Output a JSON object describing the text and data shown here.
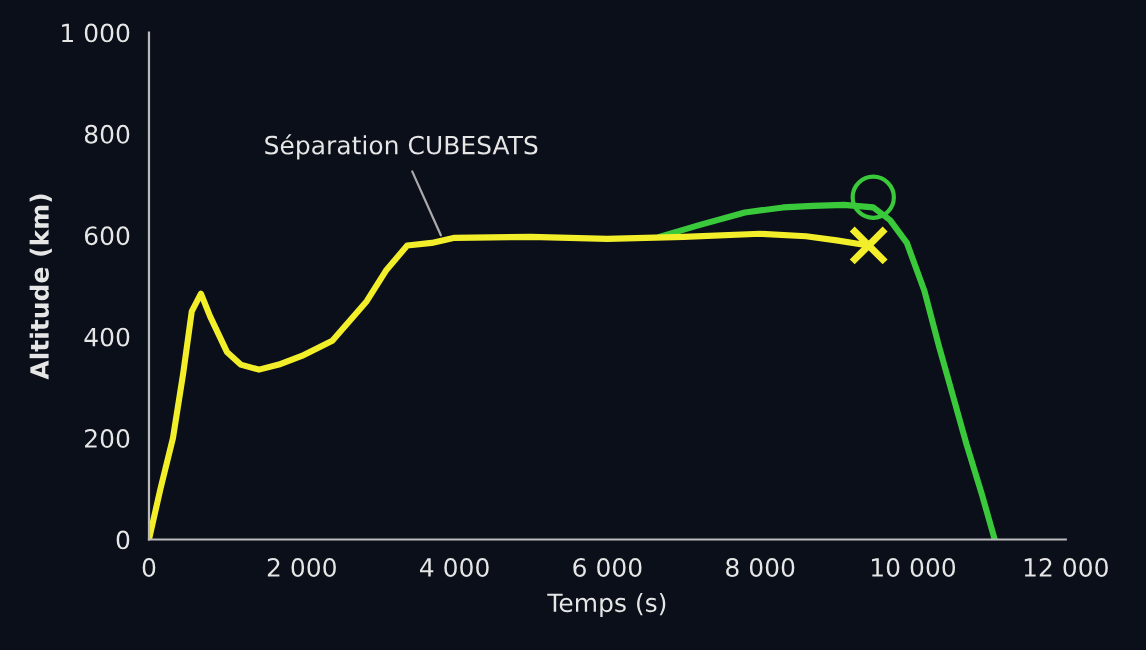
{
  "chart_data": {
    "type": "line",
    "xlabel": "Temps (s)",
    "ylabel": "Altitude (km)",
    "xlim": [
      0,
      12000
    ],
    "xticks": [
      {
        "value": 0,
        "label": "0"
      },
      {
        "value": 2000,
        "label": "2 000"
      },
      {
        "value": 4000,
        "label": "4 000"
      },
      {
        "value": 6000,
        "label": "6 000"
      },
      {
        "value": 8000,
        "label": "8 000"
      },
      {
        "value": 10000,
        "label": "10 000"
      },
      {
        "value": 12000,
        "label": "12 000"
      }
    ],
    "ylim": [
      0,
      1000
    ],
    "yticks": [
      0,
      200,
      400,
      600,
      800,
      {
        "value": 1000,
        "label": "1 000"
      }
    ],
    "grid": false,
    "legend": false,
    "line_style": "solid",
    "series": [
      {
        "color": "#39c93a",
        "x": [
          6680,
          7200,
          7800,
          8300,
          8690,
          9100,
          9480,
          9700,
          9920,
          10150,
          10340,
          10520,
          10700,
          10900,
          11070
        ],
        "values": [
          597,
          620,
          645,
          655,
          658,
          660,
          655,
          630,
          585,
          490,
          381,
          285,
          188,
          90,
          0
        ],
        "marker": "none"
      },
      {
        "color": "#f2ee2a",
        "x": [
          0,
          150,
          314,
          450,
          560,
          680,
          800,
          1020,
          1200,
          1440,
          1700,
          2000,
          2400,
          2850,
          3100,
          3380,
          3700,
          4000,
          5000,
          6000,
          7000,
          8000,
          8600,
          9000,
          9420
        ],
        "values": [
          0,
          100,
          200,
          330,
          450,
          485,
          440,
          370,
          345,
          335,
          345,
          362,
          392,
          470,
          530,
          580,
          585,
          595,
          597,
          593,
          597,
          603,
          598,
          590,
          580
        ],
        "marker": "none"
      },
      {
        "type": "scatter",
        "color": "#39c93a",
        "x": [
          9480
        ],
        "values": [
          675
        ],
        "marker": "circle"
      },
      {
        "type": "scatter",
        "color": "#f2ee2a",
        "x": [
          9420
        ],
        "values": [
          580
        ],
        "marker": "cross"
      }
    ],
    "annotations": [
      {
        "text": "Séparation CUBESATS",
        "x": 3850,
        "y": 590
      }
    ]
  }
}
